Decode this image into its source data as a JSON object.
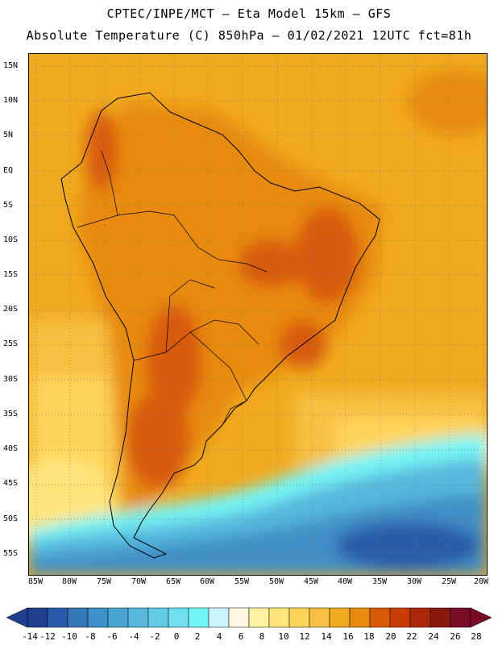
{
  "header": {
    "line1": "CPTEC/INPE/MCT –  Eta Model 15km – GFS",
    "line2": "Absolute Temperature (C) 850hPa – 01/02/2021 12UTC fct=81h"
  },
  "map": {
    "region": "South America",
    "lat_labels": [
      "15N",
      "10N",
      "5N",
      "EQ",
      "5S",
      "10S",
      "15S",
      "20S",
      "25S",
      "30S",
      "35S",
      "40S",
      "45S",
      "50S",
      "55S"
    ],
    "lon_labels": [
      "85W",
      "80W",
      "75W",
      "70W",
      "65W",
      "60W",
      "55W",
      "50W",
      "45W",
      "40W",
      "35W",
      "30W",
      "25W",
      "20W"
    ]
  },
  "colorbar": {
    "labels": [
      "-14",
      "-12",
      "-10",
      "-8",
      "-6",
      "-4",
      "-2",
      "0",
      "2",
      "4",
      "6",
      "8",
      "10",
      "12",
      "14",
      "16",
      "18",
      "20",
      "22",
      "24",
      "26",
      "28"
    ],
    "colors": [
      "#1f3f8f",
      "#2a5ba8",
      "#3478b8",
      "#3f8fc8",
      "#4aa4d2",
      "#57b8dc",
      "#62cbe6",
      "#6edff0",
      "#74f5f5",
      "#ccf3ff",
      "#fff6e0",
      "#fff2a0",
      "#ffe47a",
      "#ffd45a",
      "#f8c040",
      "#f0aa20",
      "#e88a10",
      "#d85a08",
      "#c83c08",
      "#a82808",
      "#8a1a10",
      "#780c28"
    ]
  }
}
